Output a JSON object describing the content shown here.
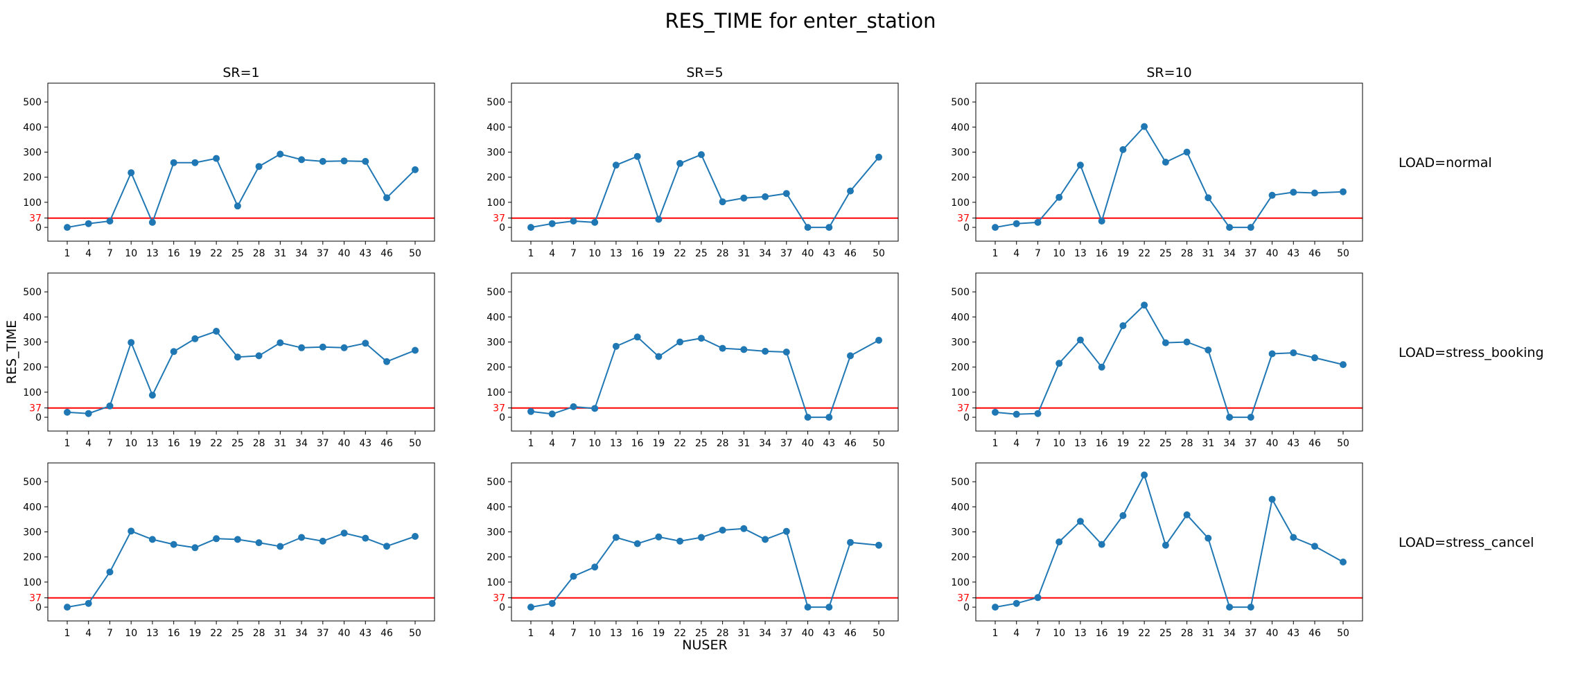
{
  "figure": {
    "title": "RES_TIME for enter_station",
    "ylabel": "RES_TIME",
    "xlabel": "NUSER"
  },
  "style": {
    "line_color": "#1f77b4",
    "threshold_color": "#ff0000",
    "tick_color": "#000000"
  },
  "chart_data": [
    {
      "type": "line",
      "title": "SR=1",
      "row_label": "",
      "x": [
        1,
        4,
        7,
        10,
        13,
        16,
        19,
        22,
        25,
        28,
        31,
        34,
        37,
        40,
        43,
        46,
        50
      ],
      "values": [
        0,
        15,
        25,
        218,
        20,
        258,
        258,
        275,
        85,
        243,
        292,
        270,
        263,
        265,
        263,
        118,
        230
      ],
      "threshold": 37,
      "ylim": [
        -55,
        575
      ],
      "yticks": [
        0,
        100,
        200,
        300,
        400,
        500
      ],
      "xticks": [
        1,
        4,
        7,
        10,
        13,
        16,
        19,
        22,
        25,
        28,
        31,
        34,
        37,
        40,
        43,
        46,
        50
      ]
    },
    {
      "type": "line",
      "title": "SR=5",
      "row_label": "",
      "x": [
        1,
        4,
        7,
        10,
        13,
        16,
        19,
        22,
        25,
        28,
        31,
        34,
        37,
        40,
        43,
        46,
        50
      ],
      "values": [
        0,
        15,
        25,
        20,
        248,
        283,
        32,
        255,
        290,
        102,
        117,
        122,
        135,
        0,
        0,
        145,
        280
      ],
      "threshold": 37,
      "ylim": [
        -55,
        575
      ],
      "yticks": [
        0,
        100,
        200,
        300,
        400,
        500
      ],
      "xticks": [
        1,
        4,
        7,
        10,
        13,
        16,
        19,
        22,
        25,
        28,
        31,
        34,
        37,
        40,
        43,
        46,
        50
      ]
    },
    {
      "type": "line",
      "title": "SR=10",
      "row_label": "LOAD=normal",
      "x": [
        1,
        4,
        7,
        10,
        13,
        16,
        19,
        22,
        25,
        28,
        31,
        34,
        37,
        40,
        43,
        46,
        50
      ],
      "values": [
        0,
        15,
        20,
        120,
        248,
        25,
        310,
        402,
        260,
        300,
        118,
        0,
        0,
        128,
        140,
        137,
        142
      ],
      "threshold": 37,
      "ylim": [
        -55,
        575
      ],
      "yticks": [
        0,
        100,
        200,
        300,
        400,
        500
      ],
      "xticks": [
        1,
        4,
        7,
        10,
        13,
        16,
        19,
        22,
        25,
        28,
        31,
        34,
        37,
        40,
        43,
        46,
        50
      ]
    },
    {
      "type": "line",
      "title": "",
      "row_label": "",
      "x": [
        1,
        4,
        7,
        10,
        13,
        16,
        19,
        22,
        25,
        28,
        31,
        34,
        37,
        40,
        43,
        46,
        50
      ],
      "values": [
        20,
        15,
        45,
        298,
        88,
        262,
        313,
        343,
        240,
        245,
        297,
        277,
        280,
        277,
        295,
        222,
        267
      ],
      "threshold": 37,
      "ylim": [
        -55,
        575
      ],
      "yticks": [
        0,
        100,
        200,
        300,
        400,
        500
      ],
      "xticks": [
        1,
        4,
        7,
        10,
        13,
        16,
        19,
        22,
        25,
        28,
        31,
        34,
        37,
        40,
        43,
        46,
        50
      ]
    },
    {
      "type": "line",
      "title": "",
      "row_label": "",
      "x": [
        1,
        4,
        7,
        10,
        13,
        16,
        19,
        22,
        25,
        28,
        31,
        34,
        37,
        40,
        43,
        46,
        50
      ],
      "values": [
        23,
        13,
        42,
        35,
        283,
        320,
        242,
        300,
        315,
        275,
        270,
        263,
        260,
        0,
        0,
        245,
        307
      ],
      "threshold": 37,
      "ylim": [
        -55,
        575
      ],
      "yticks": [
        0,
        100,
        200,
        300,
        400,
        500
      ],
      "xticks": [
        1,
        4,
        7,
        10,
        13,
        16,
        19,
        22,
        25,
        28,
        31,
        34,
        37,
        40,
        43,
        46,
        50
      ]
    },
    {
      "type": "line",
      "title": "",
      "row_label": "LOAD=stress_booking",
      "x": [
        1,
        4,
        7,
        10,
        13,
        16,
        19,
        22,
        25,
        28,
        31,
        34,
        37,
        40,
        43,
        46,
        50
      ],
      "values": [
        20,
        12,
        15,
        215,
        308,
        200,
        365,
        447,
        297,
        300,
        268,
        0,
        0,
        253,
        257,
        237,
        210
      ],
      "threshold": 37,
      "ylim": [
        -55,
        575
      ],
      "yticks": [
        0,
        100,
        200,
        300,
        400,
        500
      ],
      "xticks": [
        1,
        4,
        7,
        10,
        13,
        16,
        19,
        22,
        25,
        28,
        31,
        34,
        37,
        40,
        43,
        46,
        50
      ]
    },
    {
      "type": "line",
      "title": "",
      "row_label": "",
      "x": [
        1,
        4,
        7,
        10,
        13,
        16,
        19,
        22,
        25,
        28,
        31,
        34,
        37,
        40,
        43,
        46,
        50
      ],
      "values": [
        0,
        15,
        140,
        303,
        270,
        250,
        237,
        273,
        270,
        257,
        242,
        278,
        263,
        295,
        275,
        243,
        282
      ],
      "threshold": 37,
      "ylim": [
        -55,
        575
      ],
      "yticks": [
        0,
        100,
        200,
        300,
        400,
        500
      ],
      "xticks": [
        1,
        4,
        7,
        10,
        13,
        16,
        19,
        22,
        25,
        28,
        31,
        34,
        37,
        40,
        43,
        46,
        50
      ]
    },
    {
      "type": "line",
      "title": "",
      "row_label": "",
      "x": [
        1,
        4,
        7,
        10,
        13,
        16,
        19,
        22,
        25,
        28,
        31,
        34,
        37,
        40,
        43,
        46,
        50
      ],
      "values": [
        0,
        15,
        123,
        160,
        278,
        253,
        280,
        263,
        278,
        307,
        313,
        270,
        302,
        0,
        0,
        258,
        247
      ],
      "threshold": 37,
      "ylim": [
        -55,
        575
      ],
      "yticks": [
        0,
        100,
        200,
        300,
        400,
        500
      ],
      "xticks": [
        1,
        4,
        7,
        10,
        13,
        16,
        19,
        22,
        25,
        28,
        31,
        34,
        37,
        40,
        43,
        46,
        50
      ]
    },
    {
      "type": "line",
      "title": "",
      "row_label": "LOAD=stress_cancel",
      "x": [
        1,
        4,
        7,
        10,
        13,
        16,
        19,
        22,
        25,
        28,
        31,
        34,
        37,
        40,
        43,
        46,
        50
      ],
      "values": [
        0,
        15,
        38,
        260,
        342,
        250,
        365,
        527,
        247,
        368,
        275,
        0,
        0,
        430,
        278,
        243,
        180
      ],
      "threshold": 37,
      "ylim": [
        -55,
        575
      ],
      "yticks": [
        0,
        100,
        200,
        300,
        400,
        500
      ],
      "xticks": [
        1,
        4,
        7,
        10,
        13,
        16,
        19,
        22,
        25,
        28,
        31,
        34,
        37,
        40,
        43,
        46,
        50
      ]
    }
  ]
}
